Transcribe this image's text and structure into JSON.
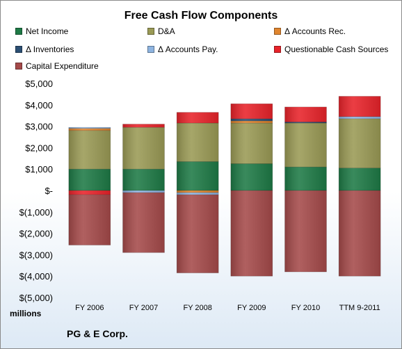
{
  "company": "PG & E Corp.",
  "units_label": "millions",
  "chart_data": {
    "type": "bar",
    "stacked": true,
    "title": "Free Cash Flow Components",
    "xlabel": "",
    "ylabel": "",
    "ylim": [
      -5000,
      5000
    ],
    "yticks": [
      5000,
      4000,
      3000,
      2000,
      1000,
      0,
      -1000,
      -2000,
      -3000,
      -4000,
      -5000
    ],
    "ytick_labels": [
      "$5,000",
      "$4,000",
      "$3,000",
      "$2,000",
      "$1,000",
      "$-",
      "$(1,000)",
      "$(2,000)",
      "$(3,000)",
      "$(4,000)",
      "$(5,000)"
    ],
    "grid": false,
    "legend_position": "top",
    "categories": [
      "FY 2006",
      "FY 2007",
      "FY 2008",
      "FY 2009",
      "FY 2010",
      "TTM 9-2011"
    ],
    "series": [
      {
        "name": "Net Income",
        "color": "#1e7a46",
        "values": [
          1000,
          1000,
          1350,
          1250,
          1100,
          1050
        ]
      },
      {
        "name": "D&A",
        "color": "#9a9a55",
        "values": [
          1800,
          1950,
          1800,
          1900,
          2050,
          2300
        ]
      },
      {
        "name": "Δ Accounts Rec.",
        "color": "#e0852e",
        "values": [
          100,
          0,
          -100,
          100,
          0,
          0
        ]
      },
      {
        "name": "Δ Inventories",
        "color": "#2b4f73",
        "values": [
          0,
          0,
          0,
          100,
          50,
          0
        ]
      },
      {
        "name": "Δ Accounts Pay.",
        "color": "#8eb4e0",
        "values": [
          50,
          -100,
          -100,
          0,
          0,
          100
        ]
      },
      {
        "name": "Questionable Cash Sources",
        "color": "#e8232a",
        "values": [
          -200,
          150,
          500,
          700,
          700,
          950
        ]
      },
      {
        "name": "Capital Expenditure",
        "color": "#a54a4a",
        "values": [
          -2350,
          -2800,
          -3650,
          -4000,
          -3800,
          -4000
        ]
      }
    ]
  }
}
